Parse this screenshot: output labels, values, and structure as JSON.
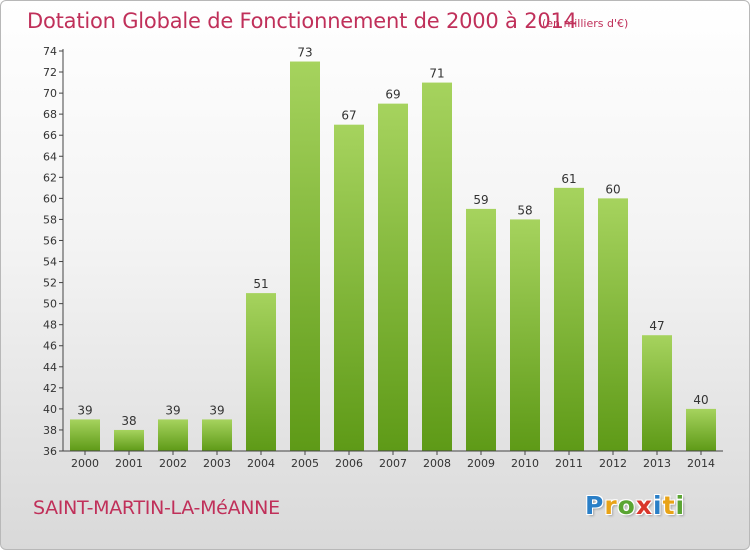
{
  "header": {
    "title": "Dotation Globale de Fonctionnement de 2000 à 2014",
    "unit": "(en milliers d'€)"
  },
  "footer": {
    "commune": "SAINT-MARTIN-LA-MéANNE",
    "logo_letters": [
      "P",
      "r",
      "o",
      "x",
      "i",
      "t",
      "i"
    ],
    "logo_colors": [
      "#2a7fc7",
      "#e8a317",
      "#5aa532",
      "#d9362b",
      "#2a7fc7",
      "#e8a317",
      "#5aa532"
    ]
  },
  "colors": {
    "bar_light": "#a6d35e",
    "bar_dark": "#5e9a17",
    "text": "#333333",
    "title": "#c0305a"
  },
  "chart_data": {
    "type": "bar",
    "title": "Dotation Globale de Fonctionnement de 2000 à 2014",
    "xlabel": "",
    "ylabel": "",
    "categories": [
      "2000",
      "2001",
      "2002",
      "2003",
      "2004",
      "2005",
      "2006",
      "2007",
      "2008",
      "2009",
      "2010",
      "2011",
      "2012",
      "2013",
      "2014"
    ],
    "values": [
      39,
      38,
      39,
      39,
      51,
      73,
      67,
      69,
      71,
      59,
      58,
      61,
      60,
      47,
      40
    ],
    "ylim": [
      36,
      74
    ],
    "yticks": [
      36,
      38,
      40,
      42,
      44,
      46,
      48,
      50,
      52,
      54,
      56,
      58,
      60,
      62,
      64,
      66,
      68,
      70,
      72,
      74
    ],
    "grid": false,
    "legend": "none"
  }
}
